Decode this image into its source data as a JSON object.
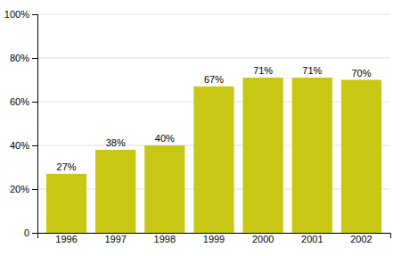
{
  "chart_data": {
    "type": "bar",
    "categories": [
      "1996",
      "1997",
      "1998",
      "1999",
      "2000",
      "2001",
      "2002"
    ],
    "values": [
      27,
      38,
      40,
      67,
      71,
      71,
      70
    ],
    "value_labels": [
      "27%",
      "38%",
      "40%",
      "67%",
      "71%",
      "71%",
      "70%"
    ],
    "data_labels": true,
    "color": "#c8c814",
    "ylim": [
      0,
      100
    ],
    "yticks": [
      0,
      {
        "value": 20,
        "label": "20%"
      },
      {
        "value": 40,
        "label": "40%"
      },
      {
        "value": 60,
        "label": "60%"
      },
      {
        "value": 80,
        "label": "80%"
      },
      {
        "value": 100,
        "label": "100%"
      }
    ],
    "grid": true
  }
}
